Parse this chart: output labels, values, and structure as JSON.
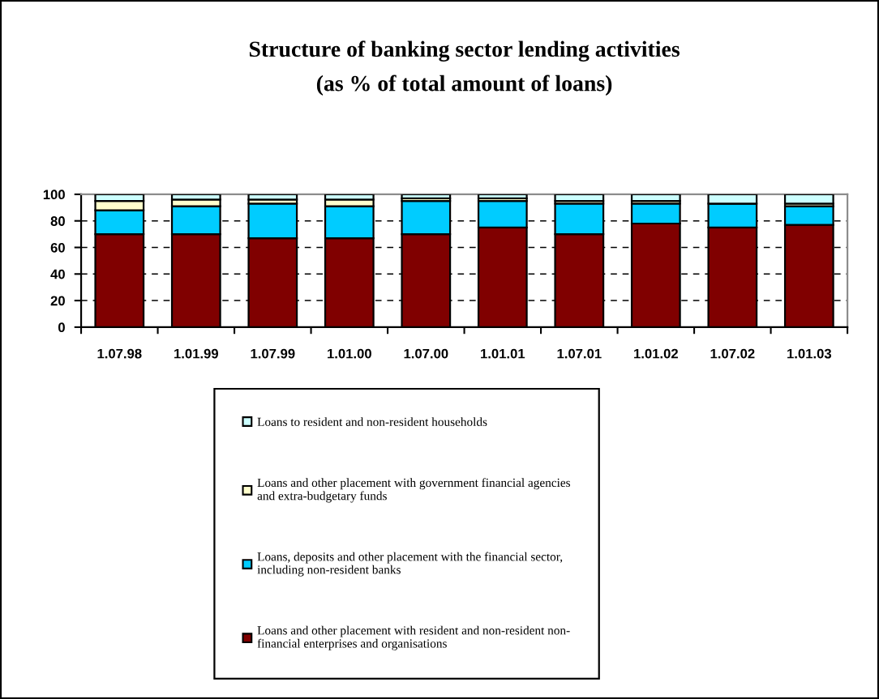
{
  "chart_data": {
    "type": "bar",
    "title": "Structure of banking sector lending activities\n(as % of total amount of loans)",
    "categories": [
      "1.07.98",
      "1.01.99",
      "1.07.99",
      "1.01.00",
      "1.07.00",
      "1.01.01",
      "1.07.01",
      "1.01.02",
      "1.07.02",
      "1.01.03"
    ],
    "series": [
      {
        "name": "Loans and other placement with resident and non-resident non-\nfinancial enterprises and organisations",
        "color": "#800000",
        "values": [
          70,
          70,
          67,
          67,
          70,
          75,
          70,
          78,
          75,
          77
        ]
      },
      {
        "name": "Loans, deposits and other placement with the financial sector,\nincluding non-resident banks",
        "color": "#00ccff",
        "values": [
          18,
          21,
          26,
          24,
          25,
          20,
          23,
          15,
          18,
          14
        ]
      },
      {
        "name": "Loans and other placement with government financial agencies\nand extra-budgetary funds",
        "color": "#ffffcc",
        "values": [
          7,
          5,
          3,
          5,
          2,
          2,
          2,
          2,
          0,
          2
        ]
      },
      {
        "name": "Loans to resident and non-resident households",
        "color": "#ccffff",
        "values": [
          5,
          4,
          4,
          4,
          3,
          3,
          5,
          5,
          7,
          7
        ]
      }
    ],
    "stacked": true,
    "ylim": [
      0,
      100
    ],
    "yticks": [
      0,
      20,
      40,
      60,
      80,
      100
    ],
    "grid": "y",
    "legend": "bottom"
  }
}
